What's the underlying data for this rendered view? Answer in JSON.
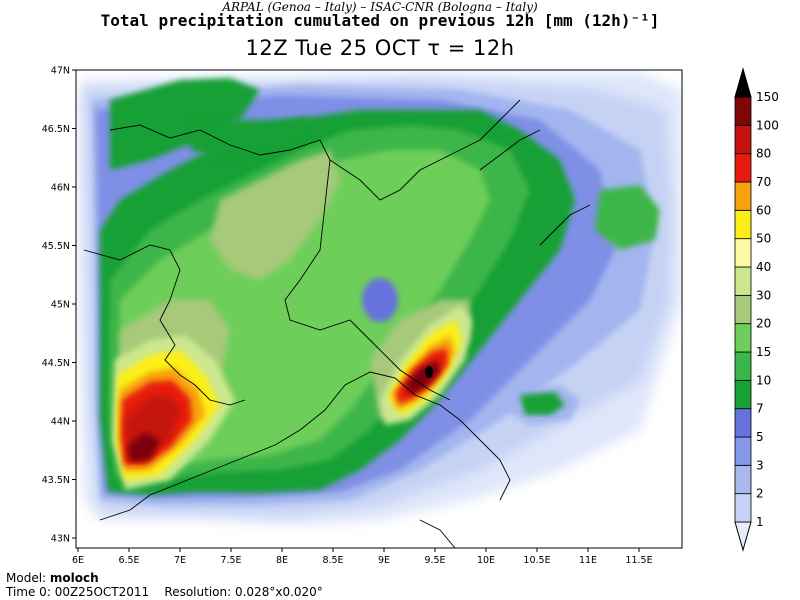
{
  "header": {
    "credits": "ARPAL (Genoa – Italy)   –   ISAC-CNR (Bologna – Italy)",
    "title": "Total precipitation cumulated on previous 12h [mm (12h)⁻¹]",
    "subtitle": "12Z Tue 25 OCT   τ = 12h"
  },
  "axes": {
    "lat_labels": [
      "47N",
      "46.5N",
      "46N",
      "45.5N",
      "45N",
      "44.5N",
      "44N",
      "43.5N",
      "43N"
    ],
    "lon_labels": [
      "6E",
      "6.5E",
      "7E",
      "7.5E",
      "8E",
      "8.5E",
      "9E",
      "9.5E",
      "10E",
      "10.5E",
      "11E",
      "11.5E"
    ]
  },
  "colorbar": {
    "levels": [
      "1",
      "2",
      "3",
      "5",
      "7",
      "10",
      "15",
      "20",
      "30",
      "40",
      "50",
      "60",
      "70",
      "80",
      "100",
      "150"
    ],
    "colors": [
      "#e6ecfa",
      "#c5d2f4",
      "#a7b9ef",
      "#8497e8",
      "#6672de",
      "#17a034",
      "#3cb64a",
      "#6ece5a",
      "#a6c97a",
      "#cce88f",
      "#fdf9a4",
      "#fcef16",
      "#f7a20d",
      "#e71a0e",
      "#c4130e",
      "#7d0607",
      "#000000"
    ]
  },
  "footer": {
    "model_label": "Model:",
    "model_value": "moloch",
    "time_label": "Time 0:",
    "time_value": "00Z25OCT2011",
    "resolution_label": "Resolution:",
    "resolution_value": "0.028°x0.020°"
  }
}
